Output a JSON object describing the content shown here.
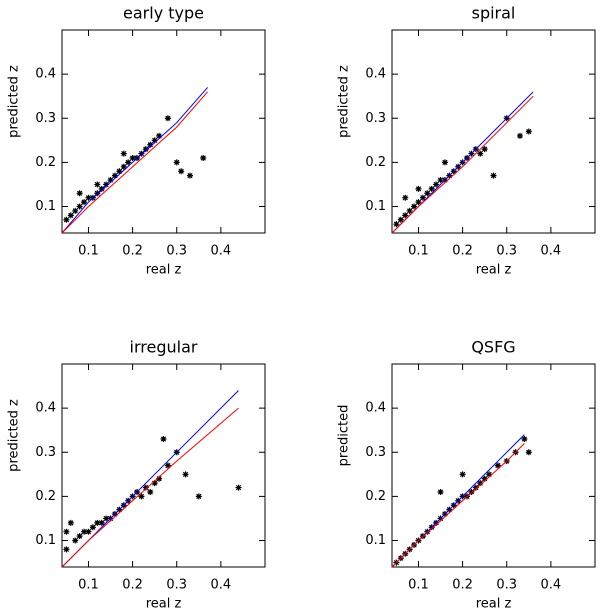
{
  "chart_data": [
    {
      "type": "scatter",
      "title": "early type",
      "xlabel": "real z",
      "ylabel": "predicted z",
      "xlim": [
        0.04,
        0.5
      ],
      "ylim": [
        0.04,
        0.5
      ],
      "xticks": [
        0.1,
        0.2,
        0.3,
        0.4
      ],
      "yticks": [
        0.1,
        0.2,
        0.3,
        0.4
      ],
      "series": [
        {
          "style": "points",
          "color": "#000000",
          "x": [
            0.05,
            0.06,
            0.07,
            0.08,
            0.09,
            0.1,
            0.11,
            0.12,
            0.13,
            0.14,
            0.15,
            0.16,
            0.17,
            0.18,
            0.19,
            0.2,
            0.21,
            0.22,
            0.23,
            0.24,
            0.25,
            0.26,
            0.28,
            0.3,
            0.31,
            0.33,
            0.36,
            0.08,
            0.12,
            0.18
          ],
          "values": [
            0.07,
            0.08,
            0.09,
            0.1,
            0.11,
            0.12,
            0.12,
            0.13,
            0.14,
            0.15,
            0.16,
            0.17,
            0.18,
            0.19,
            0.2,
            0.21,
            0.21,
            0.22,
            0.23,
            0.24,
            0.25,
            0.26,
            0.3,
            0.2,
            0.18,
            0.17,
            0.21,
            0.13,
            0.15,
            0.22
          ]
        },
        {
          "style": "line",
          "color": "#0000ff",
          "x": [
            0.04,
            0.1,
            0.2,
            0.3,
            0.37
          ],
          "values": [
            0.04,
            0.11,
            0.2,
            0.29,
            0.37
          ]
        },
        {
          "style": "line",
          "color": "#ff0000",
          "x": [
            0.04,
            0.1,
            0.2,
            0.3,
            0.37
          ],
          "values": [
            0.04,
            0.1,
            0.19,
            0.28,
            0.36
          ]
        }
      ]
    },
    {
      "type": "scatter",
      "title": "spiral",
      "xlabel": "real z",
      "ylabel": "predicted z",
      "xlim": [
        0.04,
        0.5
      ],
      "ylim": [
        0.04,
        0.5
      ],
      "xticks": [
        0.1,
        0.2,
        0.3,
        0.4
      ],
      "yticks": [
        0.1,
        0.2,
        0.3,
        0.4
      ],
      "series": [
        {
          "style": "points",
          "color": "#000000",
          "x": [
            0.05,
            0.06,
            0.07,
            0.08,
            0.09,
            0.1,
            0.11,
            0.12,
            0.13,
            0.14,
            0.15,
            0.16,
            0.17,
            0.18,
            0.19,
            0.2,
            0.21,
            0.22,
            0.23,
            0.24,
            0.25,
            0.27,
            0.3,
            0.33,
            0.35,
            0.07,
            0.1,
            0.16
          ],
          "values": [
            0.06,
            0.07,
            0.08,
            0.09,
            0.1,
            0.11,
            0.12,
            0.13,
            0.14,
            0.15,
            0.16,
            0.16,
            0.17,
            0.18,
            0.19,
            0.2,
            0.21,
            0.22,
            0.23,
            0.22,
            0.23,
            0.17,
            0.3,
            0.26,
            0.27,
            0.12,
            0.14,
            0.2
          ]
        },
        {
          "style": "line",
          "color": "#0000ff",
          "x": [
            0.04,
            0.1,
            0.2,
            0.3,
            0.36
          ],
          "values": [
            0.04,
            0.1,
            0.2,
            0.3,
            0.36
          ]
        },
        {
          "style": "line",
          "color": "#ff0000",
          "x": [
            0.04,
            0.1,
            0.2,
            0.3,
            0.36
          ],
          "values": [
            0.04,
            0.1,
            0.19,
            0.29,
            0.35
          ]
        }
      ]
    },
    {
      "type": "scatter",
      "title": "irregular",
      "xlabel": "real z",
      "ylabel": "predicted z",
      "xlim": [
        0.04,
        0.5
      ],
      "ylim": [
        0.04,
        0.5
      ],
      "xticks": [
        0.1,
        0.2,
        0.3,
        0.4
      ],
      "yticks": [
        0.1,
        0.2,
        0.3,
        0.4
      ],
      "series": [
        {
          "style": "points",
          "color": "#000000",
          "x": [
            0.05,
            0.05,
            0.06,
            0.07,
            0.08,
            0.09,
            0.1,
            0.11,
            0.12,
            0.13,
            0.14,
            0.15,
            0.16,
            0.17,
            0.18,
            0.19,
            0.2,
            0.21,
            0.22,
            0.23,
            0.24,
            0.25,
            0.27,
            0.3,
            0.32,
            0.35,
            0.44,
            0.28,
            0.26
          ],
          "values": [
            0.12,
            0.08,
            0.14,
            0.1,
            0.11,
            0.12,
            0.12,
            0.13,
            0.14,
            0.14,
            0.15,
            0.15,
            0.16,
            0.17,
            0.18,
            0.19,
            0.2,
            0.21,
            0.2,
            0.22,
            0.21,
            0.23,
            0.33,
            0.3,
            0.25,
            0.2,
            0.22,
            0.27,
            0.24
          ]
        },
        {
          "style": "line",
          "color": "#0000ff",
          "x": [
            0.04,
            0.1,
            0.2,
            0.3,
            0.44
          ],
          "values": [
            0.04,
            0.1,
            0.2,
            0.3,
            0.44
          ]
        },
        {
          "style": "line",
          "color": "#ff0000",
          "x": [
            0.04,
            0.1,
            0.2,
            0.3,
            0.44
          ],
          "values": [
            0.04,
            0.1,
            0.19,
            0.28,
            0.4
          ]
        }
      ]
    },
    {
      "type": "scatter",
      "title": "QSFG",
      "xlabel": "real z",
      "ylabel": "predicted",
      "xlim": [
        0.04,
        0.5
      ],
      "ylim": [
        0.04,
        0.5
      ],
      "xticks": [
        0.1,
        0.2,
        0.3,
        0.4
      ],
      "yticks": [
        0.1,
        0.2,
        0.3,
        0.4
      ],
      "series": [
        {
          "style": "points",
          "color": "#000000",
          "x": [
            0.05,
            0.06,
            0.07,
            0.08,
            0.09,
            0.1,
            0.11,
            0.12,
            0.13,
            0.14,
            0.15,
            0.16,
            0.17,
            0.18,
            0.19,
            0.2,
            0.21,
            0.22,
            0.23,
            0.24,
            0.25,
            0.26,
            0.28,
            0.3,
            0.32,
            0.34,
            0.35,
            0.15,
            0.2
          ],
          "values": [
            0.05,
            0.06,
            0.07,
            0.08,
            0.09,
            0.1,
            0.11,
            0.12,
            0.13,
            0.14,
            0.15,
            0.16,
            0.17,
            0.18,
            0.19,
            0.2,
            0.2,
            0.21,
            0.22,
            0.23,
            0.24,
            0.25,
            0.27,
            0.28,
            0.3,
            0.33,
            0.3,
            0.21,
            0.25
          ]
        },
        {
          "style": "line",
          "color": "#0000ff",
          "x": [
            0.04,
            0.1,
            0.2,
            0.3,
            0.34
          ],
          "values": [
            0.04,
            0.1,
            0.2,
            0.3,
            0.34
          ]
        },
        {
          "style": "line",
          "color": "#ff0000",
          "x": [
            0.04,
            0.1,
            0.2,
            0.3,
            0.34
          ],
          "values": [
            0.04,
            0.1,
            0.19,
            0.28,
            0.32
          ]
        }
      ]
    }
  ]
}
